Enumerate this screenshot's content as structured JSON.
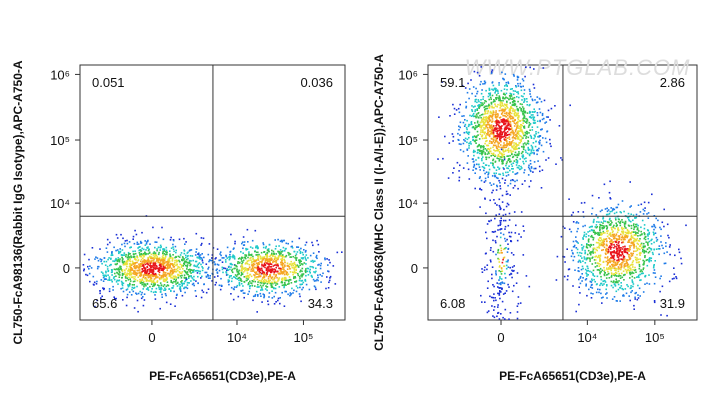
{
  "chart_data": [
    {
      "type": "scatter",
      "x_label": "PE-FcA65651(CD3e),PE-A",
      "y_label": "CL750-FcA98136(Rabbit IgG Isotype),APC-A750-A",
      "x_scale": "biexponential",
      "y_scale": "biexponential",
      "xlim": [
        -6200,
        410000
      ],
      "ylim": [
        -6000,
        1390000
      ],
      "xticks": [
        0,
        {
          "value": 10000,
          "label": "10⁴"
        },
        {
          "value": 100000,
          "label": "10⁵"
        }
      ],
      "yticks": [
        0,
        {
          "value": 10000,
          "label": "10⁴"
        },
        {
          "value": 100000,
          "label": "10⁵"
        },
        {
          "value": 1000000,
          "label": "10⁶"
        }
      ],
      "gate": {
        "x": 4100,
        "y": 5900
      },
      "quadrant_values": [
        0.051,
        0.036,
        65.6,
        34.3
      ],
      "clusters": [
        {
          "x": 0,
          "y": 0
        },
        {
          "x": 30000,
          "y": 0
        }
      ]
    },
    {
      "type": "scatter",
      "x_label": "PE-FcA65651(CD3e),PE-A",
      "y_label": "CL750-FcA65663(MHC Class II (I-A/I-E)),APC-A750-A",
      "x_scale": "biexponential",
      "y_scale": "biexponential",
      "xlim": [
        -6200,
        410000
      ],
      "ylim": [
        -6000,
        1390000
      ],
      "xticks": [
        0,
        {
          "value": 10000,
          "label": "10⁴"
        },
        {
          "value": 100000,
          "label": "10⁵"
        }
      ],
      "yticks": [
        0,
        {
          "value": 10000,
          "label": "10⁴"
        },
        {
          "value": 100000,
          "label": "10⁵"
        },
        {
          "value": 1000000,
          "label": "10⁶"
        }
      ],
      "gate": {
        "x": 4100,
        "y": 5900
      },
      "quadrant_values": [
        59.1,
        2.86,
        6.08,
        31.9
      ],
      "watermark": "WWW.PTGLAB.COM",
      "clusters": [
        {
          "x": 0,
          "y": 150000
        },
        {
          "x": 28000,
          "y": 1000
        },
        {
          "x": 0,
          "y": 500
        }
      ]
    }
  ]
}
